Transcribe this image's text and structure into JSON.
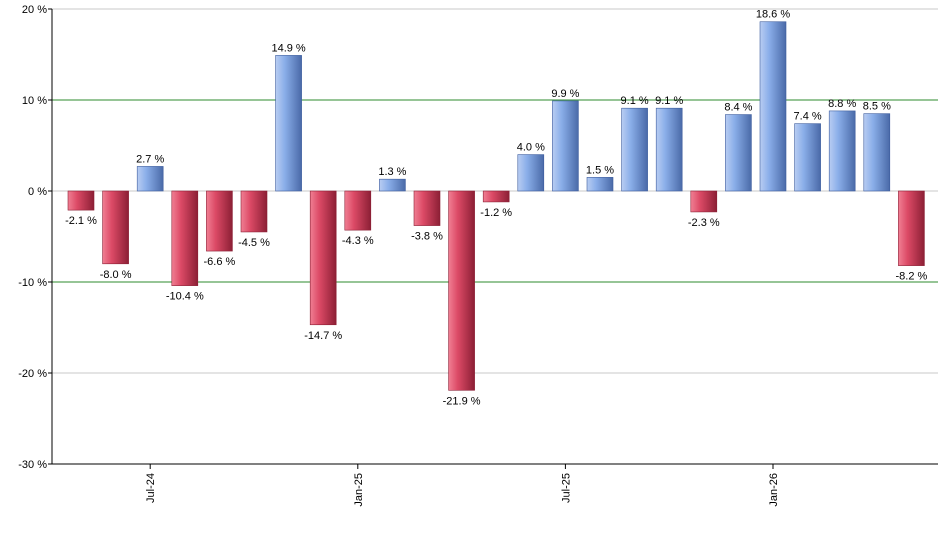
{
  "chart_data": {
    "type": "bar",
    "title": "",
    "xlabel": "",
    "ylabel": "",
    "ylim": [
      -30,
      20
    ],
    "y_ticks": [
      20,
      10,
      0,
      -10,
      -20,
      -30
    ],
    "y_tick_labels": [
      "20 %",
      "10 %",
      "0 %",
      "-10 %",
      "-20 %",
      "-30 %"
    ],
    "reference_lines": [
      10,
      -10
    ],
    "x_tick_labels": [
      {
        "label": "Jul-24",
        "index": 2
      },
      {
        "label": "Jan-25",
        "index": 8
      },
      {
        "label": "Jul-25",
        "index": 14
      },
      {
        "label": "Jan-26",
        "index": 20
      }
    ],
    "values": [
      -2.1,
      -8.0,
      2.7,
      -10.4,
      -6.6,
      -4.5,
      14.9,
      -14.7,
      -4.3,
      1.3,
      -3.8,
      -21.9,
      -1.2,
      4.0,
      9.9,
      1.5,
      9.1,
      9.1,
      -2.3,
      8.4,
      18.6,
      7.4,
      8.8,
      8.5,
      -8.2
    ],
    "data_labels": [
      "-2.1 %",
      "-8.0 %",
      "2.7 %",
      "-10.4 %",
      "-6.6 %",
      "-4.5 %",
      "14.9 %",
      "-14.7 %",
      "-4.3 %",
      "1.3 %",
      "-3.8 %",
      "-21.9 %",
      "-1.2 %",
      "4.0 %",
      "9.9 %",
      "1.5 %",
      "9.1 %",
      "9.1 %",
      "-2.3 %",
      "8.4 %",
      "18.6 %",
      "7.4 %",
      "8.8 %",
      "8.5 %",
      "-8.2 %"
    ],
    "colors": {
      "positive": "#7ea3e6",
      "positive_dark": "#3d5d9e",
      "negative": "#dc4a66",
      "negative_dark": "#8c1f35",
      "reference_line": "#2e8b2e",
      "grid": "#c8c8c8",
      "axis": "#000000"
    },
    "grid": true
  }
}
